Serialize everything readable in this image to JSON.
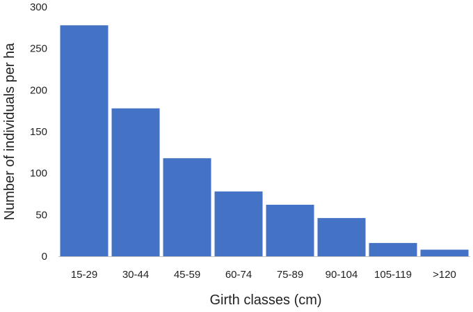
{
  "chart_data": {
    "type": "bar",
    "categories": [
      "15-29",
      "30-44",
      "45-59",
      "60-74",
      "75-89",
      "90-104",
      "105-119",
      ">120"
    ],
    "values": [
      278,
      178,
      118,
      78,
      62,
      46,
      16,
      8
    ],
    "xlabel": "Girth classes (cm)",
    "ylabel": "Number of individuals per ha",
    "ylim": [
      0,
      300
    ],
    "yticks": [
      0,
      50,
      100,
      150,
      200,
      250,
      300
    ],
    "grid": false,
    "bar_color": "#4472C4"
  }
}
